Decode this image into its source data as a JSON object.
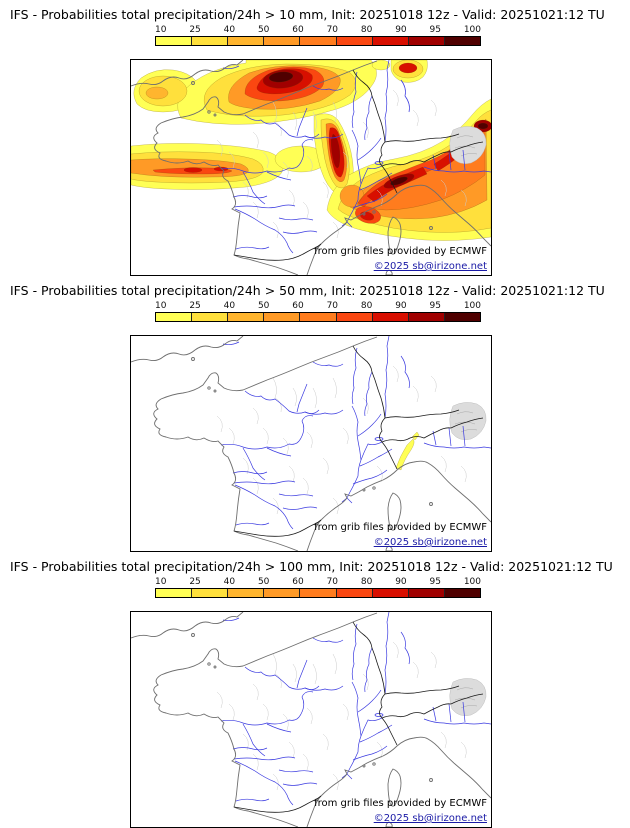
{
  "colorbar": {
    "ticks": [
      "10",
      "25",
      "40",
      "50",
      "60",
      "70",
      "80",
      "90",
      "95",
      "100"
    ],
    "colors": [
      "#ffff55",
      "#ffe03c",
      "#ffb52e",
      "#ff9a26",
      "#ff7c1e",
      "#fa4711",
      "#d80f00",
      "#a00000",
      "#500000"
    ]
  },
  "map_colors": {
    "rivers": "#3a3ae0",
    "coastline": "#6e6e6e",
    "borders": "#1a1a1a",
    "admin": "#cccccc",
    "relief": "#dcdcdc"
  },
  "panels": [
    {
      "id": "gt10",
      "title": "IFS - Probabilities total precipitation/24h > 10 mm, Init: 20251018 12z - Valid: 20251021:12 TU",
      "attribution": "from grib files provided by ECMWF",
      "copyright": "©2025 sb@irizone.net"
    },
    {
      "id": "gt50",
      "title": "IFS - Probabilities total precipitation/24h > 50 mm, Init: 20251018 12z - Valid: 20251021:12 TU",
      "attribution": "from grib files provided by ECMWF",
      "copyright": "©2025 sb@irizone.net"
    },
    {
      "id": "gt100",
      "title": "IFS - Probabilities total precipitation/24h > 100 mm, Init: 20251018 12z - Valid: 20251021:12 TU",
      "attribution": "from grib files provided by ECMWF",
      "copyright": "©2025 sb@irizone.net"
    }
  ]
}
